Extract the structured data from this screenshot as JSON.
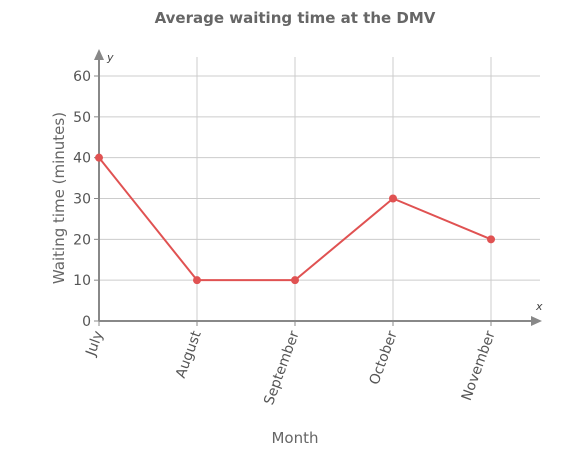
{
  "chart_data": {
    "type": "line",
    "title": "Average waiting time at the DMV",
    "xlabel": "Month",
    "ylabel": "Waiting time (minutes)",
    "x_axis_letter": "x",
    "y_axis_letter": "y",
    "categories": [
      "July",
      "August",
      "September",
      "October",
      "November"
    ],
    "values": [
      40,
      10,
      10,
      30,
      20
    ],
    "ylim": [
      0,
      60
    ],
    "yticks": [
      0,
      10,
      20,
      30,
      40,
      50,
      60
    ],
    "grid": true,
    "line_color": "#e05252",
    "axis_color": "#888888",
    "grid_color": "#cccccc"
  }
}
